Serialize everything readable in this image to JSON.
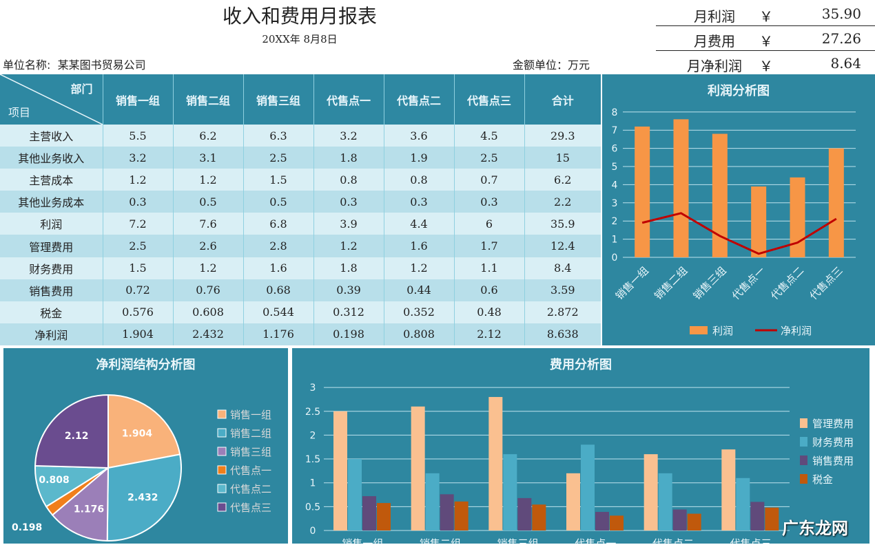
{
  "header": {
    "title": "收入和费用月报表",
    "date": "20XX年 8月8日",
    "unit_label": "单位名称:",
    "unit_name": "某某图书贸易公司",
    "money_unit": "金额单位：万元"
  },
  "summary": [
    {
      "label": "月利润",
      "currency": "￥",
      "value": "35.90"
    },
    {
      "label": "月费用",
      "currency": "￥",
      "value": "27.26"
    },
    {
      "label": "月净利润",
      "currency": "￥",
      "value": "8.64"
    }
  ],
  "table": {
    "corner_top": "部门",
    "corner_bottom": "项目",
    "columns": [
      "销售一组",
      "销售二组",
      "销售三组",
      "代售点一",
      "代售点二",
      "代售点三",
      "合计"
    ],
    "rows": [
      {
        "label": "主营收入",
        "values": [
          "5.5",
          "6.2",
          "6.3",
          "3.2",
          "3.6",
          "4.5",
          "29.3"
        ]
      },
      {
        "label": "其他业务收入",
        "values": [
          "3.2",
          "3.1",
          "2.5",
          "1.8",
          "1.9",
          "2.5",
          "15"
        ]
      },
      {
        "label": "主营成本",
        "values": [
          "1.2",
          "1.2",
          "1.5",
          "0.8",
          "0.8",
          "0.7",
          "6.2"
        ]
      },
      {
        "label": "其他业务成本",
        "values": [
          "0.3",
          "0.5",
          "0.5",
          "0.3",
          "0.3",
          "0.3",
          "2.2"
        ]
      },
      {
        "label": "利润",
        "values": [
          "7.2",
          "7.6",
          "6.8",
          "3.9",
          "4.4",
          "6",
          "35.9"
        ]
      },
      {
        "label": "管理费用",
        "values": [
          "2.5",
          "2.6",
          "2.8",
          "1.2",
          "1.6",
          "1.7",
          "12.4"
        ]
      },
      {
        "label": "财务费用",
        "values": [
          "1.5",
          "1.2",
          "1.6",
          "1.8",
          "1.2",
          "1.1",
          "8.4"
        ]
      },
      {
        "label": "销售费用",
        "values": [
          "0.72",
          "0.76",
          "0.68",
          "0.39",
          "0.44",
          "0.6",
          "3.59"
        ]
      },
      {
        "label": "税金",
        "values": [
          "0.576",
          "0.608",
          "0.544",
          "0.312",
          "0.352",
          "0.48",
          "2.872"
        ]
      },
      {
        "label": "净利润",
        "values": [
          "1.904",
          "2.432",
          "1.176",
          "0.198",
          "0.808",
          "2.12",
          "8.638"
        ]
      }
    ]
  },
  "chart_data": [
    {
      "type": "bar+line",
      "title": "利润分析图",
      "categories": [
        "销售一组",
        "销售二组",
        "销售三组",
        "代售点一",
        "代售点二",
        "代售点三"
      ],
      "series": [
        {
          "name": "利润",
          "type": "bar",
          "color": "#f79646",
          "values": [
            7.2,
            7.6,
            6.8,
            3.9,
            4.4,
            6
          ]
        },
        {
          "name": "净利润",
          "type": "line",
          "color": "#c00000",
          "values": [
            1.904,
            2.432,
            1.176,
            0.198,
            0.808,
            2.12
          ]
        }
      ],
      "ylim": [
        0,
        8
      ],
      "yticks": [
        0,
        1,
        2,
        3,
        4,
        5,
        6,
        7,
        8
      ],
      "grid": true,
      "legend": "bottom"
    },
    {
      "type": "pie",
      "title": "净利润结构分析图",
      "categories": [
        "销售一组",
        "销售二组",
        "销售三组",
        "代售点一",
        "代售点二",
        "代售点三"
      ],
      "values": [
        1.904,
        2.432,
        1.176,
        0.198,
        0.808,
        2.12
      ],
      "labels": [
        "1.904",
        "2.432",
        "1.176",
        "0.198",
        "0.808",
        "2.12"
      ],
      "colors": [
        "#f9b27a",
        "#4bacc6",
        "#9b7fb8",
        "#f07f1b",
        "#5bb8cc",
        "#6a4c8f"
      ],
      "legend": "right"
    },
    {
      "type": "bar",
      "title": "费用分析图",
      "categories": [
        "销售一组",
        "销售二组",
        "销售三组",
        "代售点一",
        "代售点二",
        "代售点三"
      ],
      "series": [
        {
          "name": "管理费用",
          "color": "#fac090",
          "values": [
            2.5,
            2.6,
            2.8,
            1.2,
            1.6,
            1.7
          ]
        },
        {
          "name": "财务费用",
          "color": "#4bacc6",
          "values": [
            1.5,
            1.2,
            1.6,
            1.8,
            1.2,
            1.1
          ]
        },
        {
          "name": "销售费用",
          "color": "#604a7b",
          "values": [
            0.72,
            0.76,
            0.68,
            0.39,
            0.44,
            0.6
          ]
        },
        {
          "name": "税金",
          "color": "#c0590c",
          "values": [
            0.576,
            0.608,
            0.544,
            0.312,
            0.352,
            0.48
          ]
        }
      ],
      "ylim": [
        0,
        3
      ],
      "yticks": [
        "0",
        "0.5",
        "1",
        "1.5",
        "2",
        "2.5",
        "3"
      ],
      "grid": true,
      "legend": "right"
    }
  ],
  "watermark": "广东龙网"
}
